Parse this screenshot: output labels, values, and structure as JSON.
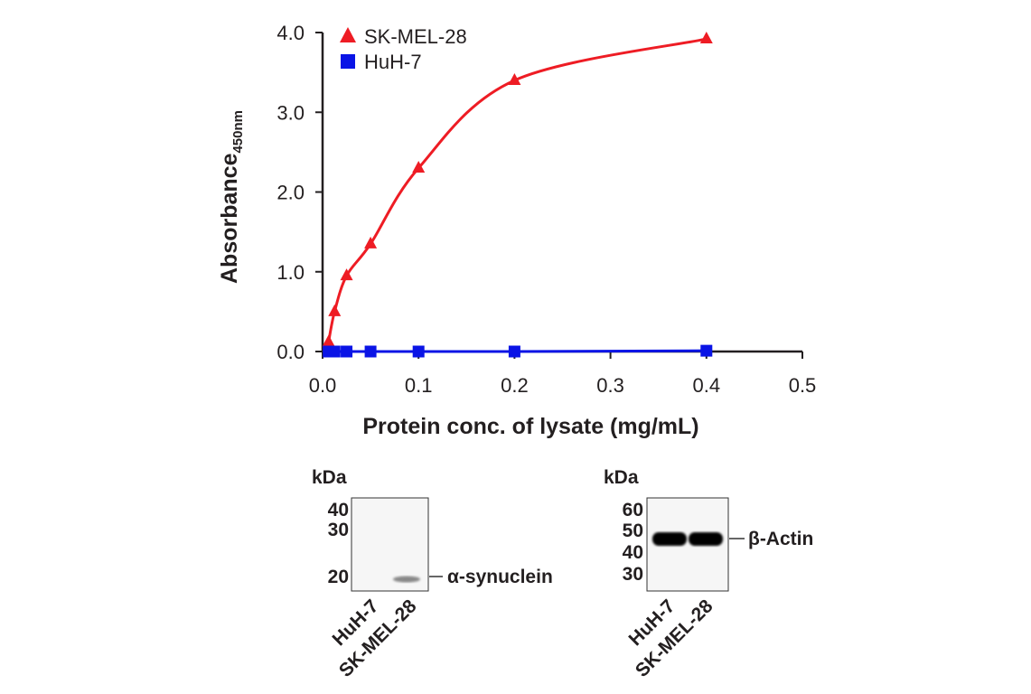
{
  "chart_data": {
    "type": "line",
    "xlabel": "Protein conc. of lysate (mg/mL)",
    "ylabel": "Absorbance",
    "ylabel_subscript": "450nm",
    "xlim": [
      0,
      0.5
    ],
    "ylim": [
      0,
      4.0
    ],
    "xticks": [
      "0.0",
      "0.1",
      "0.2",
      "0.3",
      "0.4",
      "0.5"
    ],
    "yticks": [
      "0.0",
      "1.0",
      "2.0",
      "3.0",
      "4.0"
    ],
    "legend_position": "top-left",
    "series": [
      {
        "name": "SK-MEL-28",
        "color": "#ee1c24",
        "marker": "triangle",
        "x": [
          0.00625,
          0.0125,
          0.025,
          0.05,
          0.1,
          0.2,
          0.4
        ],
        "y": [
          0.12,
          0.5,
          0.95,
          1.35,
          2.3,
          3.4,
          3.92
        ]
      },
      {
        "name": "HuH-7",
        "color": "#0a14e6",
        "marker": "square",
        "x": [
          0.00625,
          0.0125,
          0.025,
          0.05,
          0.1,
          0.2,
          0.4
        ],
        "y": [
          0.0,
          0.0,
          0.0,
          0.0,
          0.0,
          0.0,
          0.01
        ]
      }
    ]
  },
  "blots": [
    {
      "kda_label": "kDa",
      "markers": [
        "40",
        "30",
        "20"
      ],
      "target": "α-synuclein",
      "lanes": [
        "HuH-7",
        "SK-MEL-28"
      ]
    },
    {
      "kda_label": "kDa",
      "markers": [
        "60",
        "50",
        "40",
        "30"
      ],
      "target": "β-Actin",
      "lanes": [
        "HuH-7",
        "SK-MEL-28"
      ]
    }
  ]
}
